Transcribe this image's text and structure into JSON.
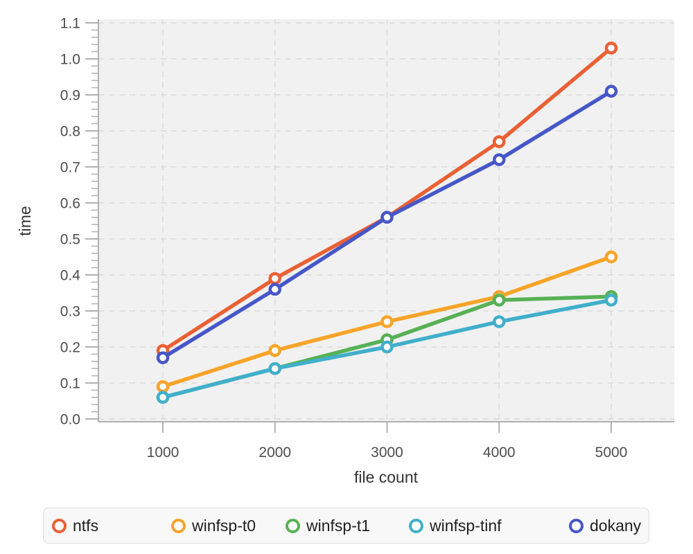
{
  "chart_data": {
    "type": "line",
    "title": "",
    "xlabel": "file count",
    "ylabel": "time",
    "x": [
      1000,
      2000,
      3000,
      4000,
      5000
    ],
    "xticks": [
      "1000",
      "2000",
      "3000",
      "4000",
      "5000"
    ],
    "yticks": [
      "0.0",
      "0.1",
      "0.2",
      "0.3",
      "0.4",
      "0.5",
      "0.6",
      "0.7",
      "0.8",
      "0.9",
      "1.0",
      "1.1"
    ],
    "ylim": [
      0.0,
      1.1
    ],
    "grid": true,
    "grid_style": "dashed",
    "legend_position": "bottom",
    "marker": "open-circle",
    "series": [
      {
        "name": "ntfs",
        "color": "#ea6034",
        "values": [
          0.19,
          0.39,
          0.56,
          0.77,
          1.03
        ]
      },
      {
        "name": "winfsp-t0",
        "color": "#f7a428",
        "values": [
          0.09,
          0.19,
          0.27,
          0.34,
          0.45
        ]
      },
      {
        "name": "winfsp-t1",
        "color": "#57b155",
        "values": [
          0.06,
          0.14,
          0.22,
          0.33,
          0.34
        ]
      },
      {
        "name": "winfsp-tinf",
        "color": "#41afcb",
        "values": [
          0.06,
          0.14,
          0.2,
          0.27,
          0.33
        ]
      },
      {
        "name": "dokany",
        "color": "#4657c8",
        "values": [
          0.17,
          0.36,
          0.56,
          0.72,
          0.91
        ]
      }
    ]
  },
  "colors": {
    "plot_background": "#f1f1f1",
    "gridline": "#d9d9d9",
    "axis": "#b0b0b0",
    "tick_label": "#4d4d4d",
    "axis_title": "#333333",
    "legend_background": "#f8f8f8",
    "legend_border": "#dcdcdc"
  }
}
